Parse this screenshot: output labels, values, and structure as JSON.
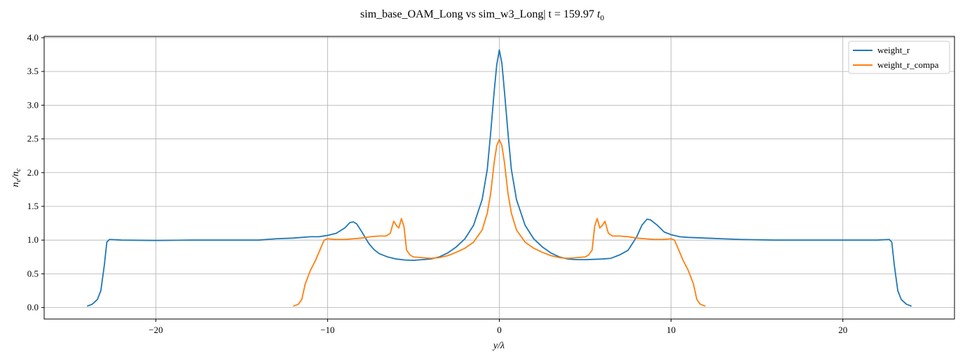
{
  "chart_data": {
    "type": "line",
    "title": "sim_base_OAM_Long vs sim_w3_Long| t = 159.97",
    "title_math": "t",
    "title_math_sub": "0",
    "xlabel_math": "y/λ",
    "ylabel_main": "n",
    "ylabel_sub1": "e",
    "ylabel_slash": "/n",
    "ylabel_sub2": "c",
    "xlim": [
      -26.5,
      26.5
    ],
    "ylim": [
      -0.17,
      4.02
    ],
    "xticks": [
      -20,
      -10,
      0,
      10,
      20
    ],
    "xtick_labels": [
      "−20",
      "−10",
      "0",
      "10",
      "20"
    ],
    "yticks": [
      0.0,
      0.5,
      1.0,
      1.5,
      2.0,
      2.5,
      3.0,
      3.5,
      4.0
    ],
    "ytick_labels": [
      "0.0",
      "0.5",
      "1.0",
      "1.5",
      "2.0",
      "2.5",
      "3.0",
      "3.5",
      "4.0"
    ],
    "grid": true,
    "legend_position": "top-right",
    "series": [
      {
        "name": "weight_r",
        "color": "#1f77b4",
        "points": [
          [
            -24,
            0.02
          ],
          [
            -23.7,
            0.05
          ],
          [
            -23.4,
            0.12
          ],
          [
            -23.2,
            0.25
          ],
          [
            -23.0,
            0.62
          ],
          [
            -22.85,
            0.97
          ],
          [
            -22.7,
            1.01
          ],
          [
            -22,
            1.0
          ],
          [
            -20,
            0.995
          ],
          [
            -18,
            1.0
          ],
          [
            -16,
            1.0
          ],
          [
            -14,
            1.0
          ],
          [
            -13,
            1.02
          ],
          [
            -12,
            1.03
          ],
          [
            -11,
            1.05
          ],
          [
            -10.5,
            1.05
          ],
          [
            -10,
            1.07
          ],
          [
            -9.5,
            1.1
          ],
          [
            -9.0,
            1.18
          ],
          [
            -8.7,
            1.26
          ],
          [
            -8.5,
            1.27
          ],
          [
            -8.3,
            1.24
          ],
          [
            -8.0,
            1.12
          ],
          [
            -7.6,
            0.95
          ],
          [
            -7.3,
            0.86
          ],
          [
            -7.0,
            0.8
          ],
          [
            -6.5,
            0.75
          ],
          [
            -6.0,
            0.72
          ],
          [
            -5.5,
            0.705
          ],
          [
            -5.0,
            0.7
          ],
          [
            -4.5,
            0.71
          ],
          [
            -4.0,
            0.72
          ],
          [
            -3.5,
            0.75
          ],
          [
            -3.0,
            0.81
          ],
          [
            -2.5,
            0.9
          ],
          [
            -2.0,
            1.02
          ],
          [
            -1.5,
            1.22
          ],
          [
            -1.0,
            1.6
          ],
          [
            -0.7,
            2.05
          ],
          [
            -0.5,
            2.6
          ],
          [
            -0.3,
            3.2
          ],
          [
            -0.15,
            3.6
          ],
          [
            0,
            3.82
          ],
          [
            0.15,
            3.62
          ],
          [
            0.3,
            3.2
          ],
          [
            0.5,
            2.6
          ],
          [
            0.7,
            2.05
          ],
          [
            1.0,
            1.6
          ],
          [
            1.5,
            1.22
          ],
          [
            2.0,
            1.02
          ],
          [
            2.5,
            0.9
          ],
          [
            3.0,
            0.81
          ],
          [
            3.5,
            0.75
          ],
          [
            4.0,
            0.72
          ],
          [
            4.5,
            0.71
          ],
          [
            5.0,
            0.71
          ],
          [
            5.5,
            0.715
          ],
          [
            6.0,
            0.72
          ],
          [
            6.5,
            0.73
          ],
          [
            7.0,
            0.78
          ],
          [
            7.5,
            0.85
          ],
          [
            8.0,
            1.05
          ],
          [
            8.3,
            1.22
          ],
          [
            8.6,
            1.31
          ],
          [
            8.8,
            1.3
          ],
          [
            9.2,
            1.22
          ],
          [
            9.6,
            1.12
          ],
          [
            10,
            1.08
          ],
          [
            10.5,
            1.05
          ],
          [
            11,
            1.04
          ],
          [
            12,
            1.03
          ],
          [
            13,
            1.02
          ],
          [
            14,
            1.01
          ],
          [
            16,
            1.0
          ],
          [
            18,
            1.0
          ],
          [
            20,
            1.0
          ],
          [
            22,
            1.0
          ],
          [
            22.7,
            1.01
          ],
          [
            22.85,
            0.97
          ],
          [
            23.0,
            0.62
          ],
          [
            23.2,
            0.25
          ],
          [
            23.4,
            0.12
          ],
          [
            23.7,
            0.05
          ],
          [
            24,
            0.02
          ]
        ]
      },
      {
        "name": "weight_r_compa",
        "color": "#ff7f0e",
        "points": [
          [
            -12,
            0.02
          ],
          [
            -11.7,
            0.05
          ],
          [
            -11.5,
            0.12
          ],
          [
            -11.3,
            0.35
          ],
          [
            -11.0,
            0.55
          ],
          [
            -10.7,
            0.7
          ],
          [
            -10.4,
            0.88
          ],
          [
            -10.2,
            1.0
          ],
          [
            -10.0,
            1.02
          ],
          [
            -9.5,
            1.01
          ],
          [
            -9.0,
            1.01
          ],
          [
            -8.5,
            1.02
          ],
          [
            -8.0,
            1.03
          ],
          [
            -7.5,
            1.05
          ],
          [
            -7.0,
            1.06
          ],
          [
            -6.6,
            1.06
          ],
          [
            -6.35,
            1.1
          ],
          [
            -6.15,
            1.28
          ],
          [
            -6.0,
            1.22
          ],
          [
            -5.85,
            1.18
          ],
          [
            -5.7,
            1.32
          ],
          [
            -5.55,
            1.2
          ],
          [
            -5.4,
            0.85
          ],
          [
            -5.2,
            0.78
          ],
          [
            -5.0,
            0.75
          ],
          [
            -4.5,
            0.74
          ],
          [
            -4.0,
            0.73
          ],
          [
            -3.5,
            0.74
          ],
          [
            -3.0,
            0.77
          ],
          [
            -2.5,
            0.82
          ],
          [
            -2.0,
            0.88
          ],
          [
            -1.5,
            0.97
          ],
          [
            -1.0,
            1.15
          ],
          [
            -0.7,
            1.4
          ],
          [
            -0.5,
            1.7
          ],
          [
            -0.3,
            2.15
          ],
          [
            -0.15,
            2.4
          ],
          [
            0,
            2.49
          ],
          [
            0.15,
            2.4
          ],
          [
            0.3,
            2.15
          ],
          [
            0.5,
            1.7
          ],
          [
            0.7,
            1.4
          ],
          [
            1.0,
            1.15
          ],
          [
            1.5,
            0.97
          ],
          [
            2.0,
            0.88
          ],
          [
            2.5,
            0.82
          ],
          [
            3.0,
            0.77
          ],
          [
            3.5,
            0.74
          ],
          [
            4.0,
            0.73
          ],
          [
            4.5,
            0.74
          ],
          [
            5.0,
            0.75
          ],
          [
            5.2,
            0.78
          ],
          [
            5.4,
            0.85
          ],
          [
            5.55,
            1.2
          ],
          [
            5.7,
            1.32
          ],
          [
            5.85,
            1.18
          ],
          [
            6.0,
            1.22
          ],
          [
            6.15,
            1.28
          ],
          [
            6.35,
            1.1
          ],
          [
            6.6,
            1.06
          ],
          [
            7.0,
            1.06
          ],
          [
            7.5,
            1.05
          ],
          [
            8.0,
            1.03
          ],
          [
            8.5,
            1.02
          ],
          [
            9.0,
            1.01
          ],
          [
            9.5,
            1.01
          ],
          [
            10.0,
            1.02
          ],
          [
            10.2,
            1.0
          ],
          [
            10.4,
            0.88
          ],
          [
            10.7,
            0.7
          ],
          [
            11.0,
            0.55
          ],
          [
            11.3,
            0.35
          ],
          [
            11.5,
            0.12
          ],
          [
            11.7,
            0.05
          ],
          [
            12,
            0.02
          ]
        ]
      }
    ]
  }
}
